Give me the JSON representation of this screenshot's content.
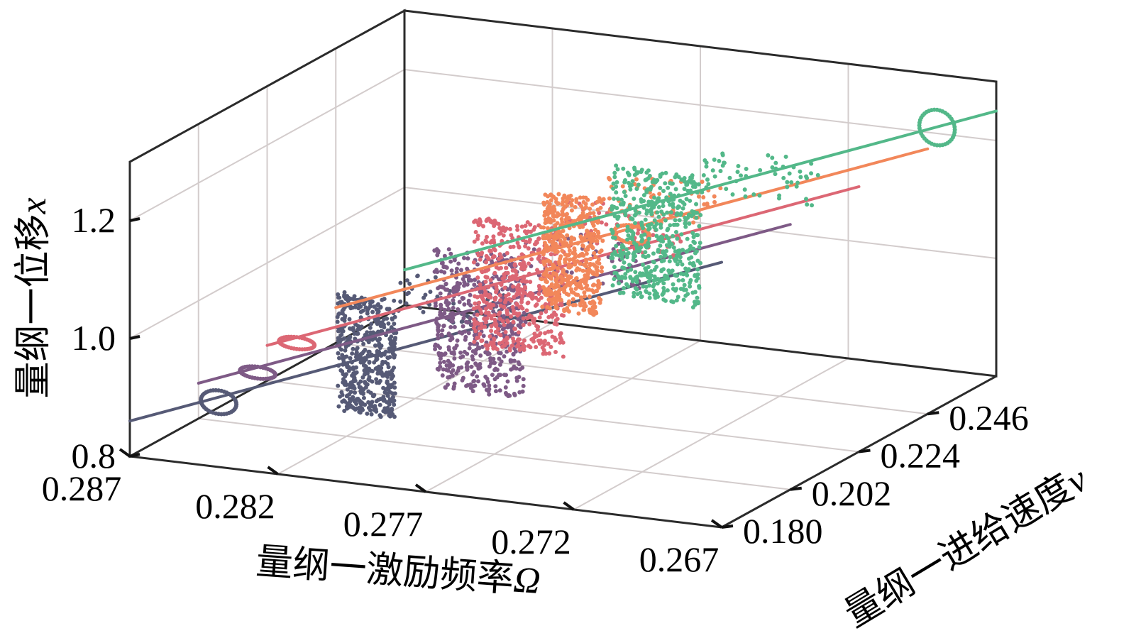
{
  "chart_data": {
    "type": "scatter",
    "projection": "3d",
    "title": "",
    "xlabel": {
      "prefix": "量纲一激励频率",
      "symbol": "Ω"
    },
    "ylabel": {
      "prefix": "量纲一进给速度",
      "symbol": "v"
    },
    "zlabel": {
      "prefix": "量纲一位移",
      "symbol": "x"
    },
    "xlim": [
      0.287,
      0.267
    ],
    "ylim": [
      0.18,
      0.246
    ],
    "zlim": [
      0.8,
      1.3
    ],
    "x_ticks": [
      "0.287",
      "0.282",
      "0.277",
      "0.272",
      "0.267"
    ],
    "y_ticks": [
      "0.180",
      "0.202",
      "0.224",
      "0.246"
    ],
    "z_ticks": [
      "0.8",
      "1.0",
      "1.2"
    ],
    "grid": true,
    "legend": "none",
    "series": [
      {
        "v": 0.18,
        "color": "#565a76",
        "branch": {
          "x0": 0.287,
          "z0": 0.86,
          "x1": 0.267,
          "z1": 1.25
        },
        "chaos": {
          "x_range": [
            0.28,
            0.278
          ],
          "z_range": [
            0.92,
            1.12
          ]
        },
        "period2": {
          "x": 0.284,
          "z_range": [
            0.89,
            0.93
          ]
        }
      },
      {
        "v": 0.202,
        "color": "#7e5a86",
        "branch": {
          "x0": 0.287,
          "z0": 0.86,
          "x1": 0.267,
          "z1": 1.25
        },
        "chaos": {
          "x_range": [
            0.279,
            0.276
          ],
          "z_range": [
            0.9,
            1.14
          ]
        },
        "period2": {
          "x": 0.285,
          "z_range": [
            0.88,
            0.9
          ]
        }
      },
      {
        "v": 0.224,
        "color": "#dc6774",
        "branch": {
          "x0": 0.287,
          "z0": 0.86,
          "x1": 0.267,
          "z1": 1.25
        },
        "chaos": {
          "x_range": [
            0.28,
            0.277
          ],
          "z_range": [
            0.9,
            1.12
          ]
        },
        "period2": {
          "x": 0.286,
          "z_range": [
            0.86,
            0.88
          ]
        }
      },
      {
        "v": 0.246,
        "color": "#f2875a",
        "branch": {
          "x0": 0.287,
          "z0": 0.86,
          "x1": 0.267,
          "z1": 1.25
        },
        "chaos": {
          "x_range": [
            0.28,
            0.278
          ],
          "z_range": [
            0.9,
            1.1
          ]
        },
        "period2": {
          "x": 0.277,
          "z_range": [
            1.03,
            1.06
          ]
        }
      },
      {
        "v": 0.268,
        "color": "#53b889",
        "branch": {
          "x0": 0.287,
          "z0": 0.86,
          "x1": 0.267,
          "z1": 1.25
        },
        "chaos": {
          "x_range": [
            0.28,
            0.277
          ],
          "z_range": [
            0.86,
            1.08
          ]
        },
        "period2": {
          "x": 0.269,
          "z_range": [
            1.18,
            1.24
          ]
        }
      }
    ]
  }
}
